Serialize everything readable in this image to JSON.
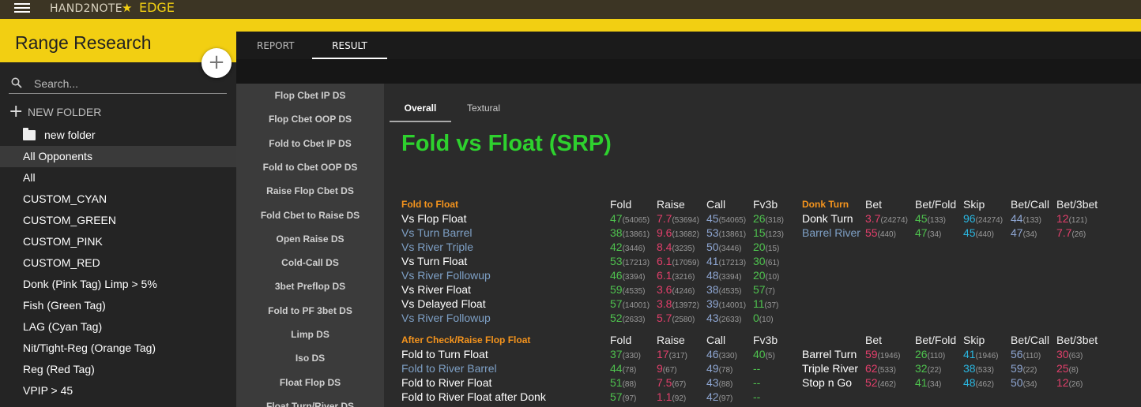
{
  "app": {
    "brand": "HAND2NOTE",
    "edition": "EDGE"
  },
  "sidebar": {
    "title": "Range Research",
    "search_placeholder": "Search...",
    "new_folder_label": "NEW FOLDER",
    "folder": "new folder",
    "items": [
      "All Opponents",
      "All",
      "CUSTOM_CYAN",
      "CUSTOM_GREEN",
      "CUSTOM_PINK",
      "CUSTOM_RED",
      "Donk (Pink Tag) Limp > 5%",
      "Fish (Green Tag)",
      "LAG (Cyan Tag)",
      "Nit/Tight-Reg (Orange Tag)",
      "Reg (Red Tag)",
      "VPIP > 45"
    ]
  },
  "tabs": [
    "REPORT",
    "RESULT"
  ],
  "nav": [
    "Flop Cbet IP DS",
    "Flop Cbet OOP DS",
    "Fold to Cbet IP DS",
    "Fold to Cbet OOP DS",
    "Raise Flop Cbet DS",
    "Fold Cbet to Raise DS",
    "Open Raise DS",
    "Cold-Call DS",
    "3bet Preflop DS",
    "Fold to PF 3bet DS",
    "Limp DS",
    "Iso DS",
    "Float Flop DS",
    "Float Turn/River DS"
  ],
  "subtabs": [
    "Overall",
    "Textural"
  ],
  "report": {
    "title": "Fold vs Float (SRP)",
    "s1": {
      "label": "Fold to Float",
      "headers": [
        "Fold",
        "Raise",
        "Call",
        "Fv3b"
      ],
      "rows": [
        {
          "name": "Vs Flop Float",
          "blue": false,
          "v": [
            [
              "47",
              "(54065)"
            ],
            [
              "7.7",
              "(53694)"
            ],
            [
              "45",
              "(54065)"
            ],
            [
              "26",
              "(318)"
            ]
          ]
        },
        {
          "name": "Vs Turn Barrel",
          "blue": true,
          "v": [
            [
              "38",
              "(13861)"
            ],
            [
              "9.6",
              "(13682)"
            ],
            [
              "53",
              "(13861)"
            ],
            [
              "15",
              "(123)"
            ]
          ]
        },
        {
          "name": "Vs River Triple",
          "blue": true,
          "v": [
            [
              "42",
              "(3446)"
            ],
            [
              "8.4",
              "(3235)"
            ],
            [
              "50",
              "(3446)"
            ],
            [
              "20",
              "(15)"
            ]
          ]
        },
        {
          "name": "Vs Turn Float",
          "blue": false,
          "v": [
            [
              "53",
              "(17213)"
            ],
            [
              "6.1",
              "(17059)"
            ],
            [
              "41",
              "(17213)"
            ],
            [
              "30",
              "(61)"
            ]
          ]
        },
        {
          "name": "Vs River Followup",
          "blue": true,
          "v": [
            [
              "46",
              "(3394)"
            ],
            [
              "6.1",
              "(3216)"
            ],
            [
              "48",
              "(3394)"
            ],
            [
              "20",
              "(10)"
            ]
          ]
        },
        {
          "name": "Vs River Float",
          "blue": false,
          "v": [
            [
              "59",
              "(4535)"
            ],
            [
              "3.6",
              "(4246)"
            ],
            [
              "38",
              "(4535)"
            ],
            [
              "57",
              "(7)"
            ]
          ]
        },
        {
          "name": "Vs Delayed Float",
          "blue": false,
          "v": [
            [
              "57",
              "(14001)"
            ],
            [
              "3.8",
              "(13972)"
            ],
            [
              "39",
              "(14001)"
            ],
            [
              "11",
              "(37)"
            ]
          ]
        },
        {
          "name": "Vs River Followup",
          "blue": true,
          "v": [
            [
              "52",
              "(2633)"
            ],
            [
              "5.7",
              "(2580)"
            ],
            [
              "43",
              "(2633)"
            ],
            [
              "0",
              "(10)"
            ]
          ]
        }
      ]
    },
    "s2": {
      "label": "Donk Turn",
      "headers": [
        "Bet",
        "Bet/Fold",
        "Skip",
        "Bet/Call",
        "Bet/3bet"
      ],
      "rows": [
        {
          "name": "Donk Turn",
          "blue": false,
          "v": [
            [
              "3.7",
              "(24274)"
            ],
            [
              "45",
              "(133)"
            ],
            [
              "96",
              "(24274)"
            ],
            [
              "44",
              "(133)"
            ],
            [
              "12",
              "(121)"
            ]
          ]
        },
        {
          "name": "Barrel River",
          "blue": true,
          "v": [
            [
              "55",
              "(440)"
            ],
            [
              "47",
              "(34)"
            ],
            [
              "45",
              "(440)"
            ],
            [
              "47",
              "(34)"
            ],
            [
              "7.7",
              "(26)"
            ]
          ]
        }
      ]
    },
    "s3": {
      "label": "After Check/Raise Flop Float",
      "headers": [
        "Fold",
        "Raise",
        "Call",
        "Fv3b"
      ],
      "rows": [
        {
          "name": "Fold to Turn Float",
          "blue": false,
          "v": [
            [
              "37",
              "(330)"
            ],
            [
              "17",
              "(317)"
            ],
            [
              "46",
              "(330)"
            ],
            [
              "40",
              "(5)"
            ]
          ]
        },
        {
          "name": "Fold to River Barrel",
          "blue": true,
          "v": [
            [
              "44",
              "(78)"
            ],
            [
              "9",
              "(67)"
            ],
            [
              "49",
              "(78)"
            ],
            [
              "--",
              ""
            ]
          ]
        },
        {
          "name": "Fold to River Float",
          "blue": false,
          "v": [
            [
              "51",
              "(88)"
            ],
            [
              "7.5",
              "(67)"
            ],
            [
              "43",
              "(88)"
            ],
            [
              "--",
              ""
            ]
          ]
        },
        {
          "name": "Fold to River Float after Donk",
          "blue": false,
          "v": [
            [
              "57",
              "(97)"
            ],
            [
              "1.1",
              "(92)"
            ],
            [
              "42",
              "(97)"
            ],
            [
              "--",
              ""
            ]
          ]
        }
      ]
    },
    "s4": {
      "headers": [
        "Bet",
        "Bet/Fold",
        "Skip",
        "Bet/Call",
        "Bet/3bet"
      ],
      "rows": [
        {
          "name": "Barrel Turn",
          "blue": false,
          "v": [
            [
              "59",
              "(1946)"
            ],
            [
              "26",
              "(110)"
            ],
            [
              "41",
              "(1946)"
            ],
            [
              "56",
              "(110)"
            ],
            [
              "30",
              "(63)"
            ]
          ]
        },
        {
          "name": "Triple River",
          "blue": false,
          "v": [
            [
              "62",
              "(533)"
            ],
            [
              "32",
              "(22)"
            ],
            [
              "38",
              "(533)"
            ],
            [
              "59",
              "(22)"
            ],
            [
              "25",
              "(8)"
            ]
          ]
        },
        {
          "name": "Stop n Go",
          "blue": false,
          "v": [
            [
              "52",
              "(462)"
            ],
            [
              "41",
              "(34)"
            ],
            [
              "48",
              "(462)"
            ],
            [
              "50",
              "(34)"
            ],
            [
              "12",
              "(26)"
            ]
          ]
        }
      ]
    }
  }
}
